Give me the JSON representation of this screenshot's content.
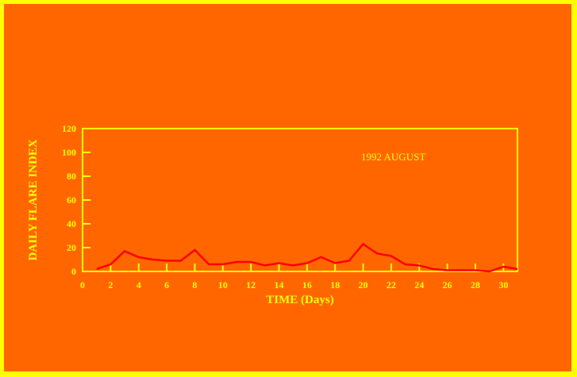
{
  "chart_data": {
    "type": "line",
    "title": "",
    "annotation": "1992  AUGUST",
    "xlabel": "TIME (Days)",
    "ylabel": "DAILY FLARE INDEX",
    "xlim": [
      0,
      31
    ],
    "ylim": [
      0,
      120
    ],
    "xticks": [
      0,
      2,
      4,
      6,
      8,
      10,
      12,
      14,
      16,
      18,
      20,
      22,
      24,
      26,
      28,
      30
    ],
    "yticks": [
      0,
      20,
      40,
      60,
      80,
      100,
      120
    ],
    "grid": false,
    "colors": {
      "background": "#ff6600",
      "border": "#ffff00",
      "axes": "#ffff00",
      "line": "#ff0000"
    },
    "x": [
      1,
      2,
      3,
      4,
      5,
      6,
      7,
      8,
      9,
      10,
      11,
      12,
      13,
      14,
      15,
      16,
      17,
      18,
      19,
      20,
      21,
      22,
      23,
      24,
      25,
      26,
      27,
      28,
      29,
      30,
      31
    ],
    "values": [
      2,
      6,
      17,
      12,
      10,
      9,
      9,
      18,
      6,
      6,
      8,
      8,
      5,
      7,
      5,
      7,
      12,
      7,
      9,
      23,
      15,
      13,
      6,
      5,
      2,
      1,
      1,
      1,
      0,
      4,
      2
    ]
  }
}
